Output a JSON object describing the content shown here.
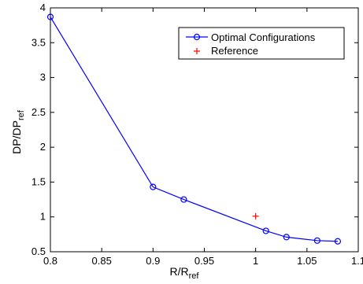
{
  "chart_data": {
    "type": "line",
    "xlabel_main": "R/R",
    "xlabel_sub": "ref",
    "ylabel_main": "DP/DP",
    "ylabel_sub": "ref",
    "xlim": [
      0.8,
      1.1
    ],
    "ylim": [
      0.5,
      4
    ],
    "xticks": [
      "0.8",
      "0.85",
      "0.9",
      "0.95",
      "1",
      "1.05",
      "1.1"
    ],
    "yticks": [
      "0.5",
      "1",
      "1.5",
      "2",
      "2.5",
      "3",
      "3.5",
      "4"
    ],
    "grid": false,
    "legend_position": "top-right",
    "series": [
      {
        "name": "Optimal Configurations",
        "color": "#0000ff",
        "marker": "circle",
        "x": [
          0.8,
          0.9,
          0.93,
          1.01,
          1.03,
          1.06,
          1.08
        ],
        "y": [
          3.87,
          1.43,
          1.25,
          0.8,
          0.71,
          0.66,
          0.65
        ]
      },
      {
        "name": "Reference",
        "color": "#ff0000",
        "marker": "plus",
        "x": [
          1.0
        ],
        "y": [
          1.01
        ]
      }
    ]
  }
}
